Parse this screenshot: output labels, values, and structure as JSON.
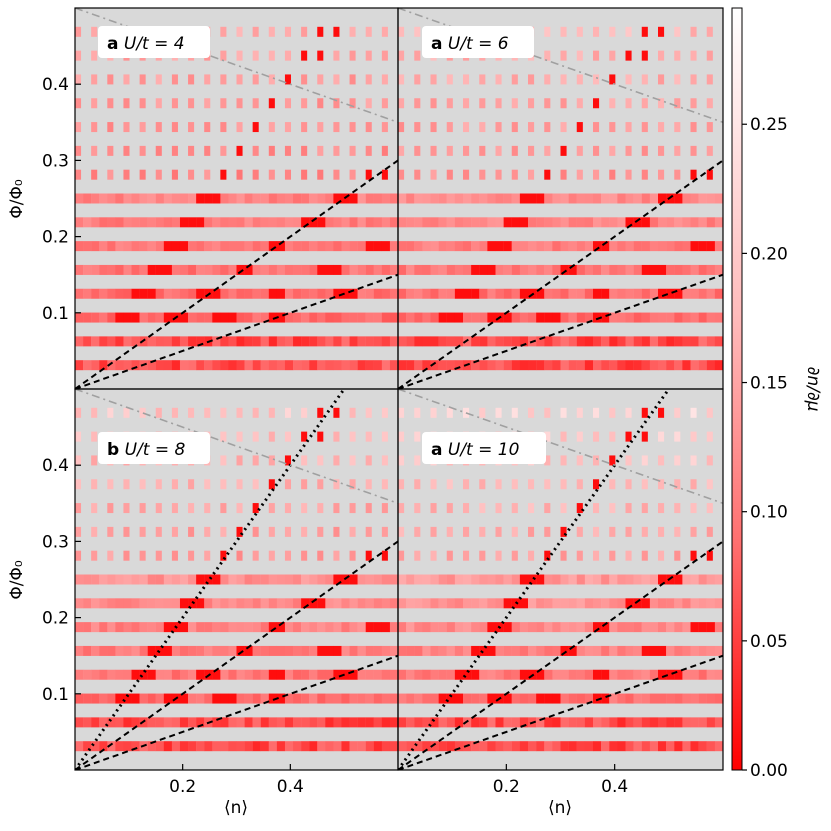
{
  "colors": {
    "background": "#d9d9d9",
    "low": "#ff0000",
    "high": "#ffffff",
    "dashed": "#000000",
    "dashdot": "#a0a0a0",
    "label_box": "#ffffff"
  },
  "colorbar": {
    "label": "∂n/∂μ",
    "ticks": [
      "0.00",
      "0.05",
      "0.10",
      "0.15",
      "0.20",
      "0.25"
    ],
    "tick_values": [
      0.0,
      0.05,
      0.1,
      0.15,
      0.2,
      0.25
    ],
    "range": [
      0.0,
      0.295
    ]
  },
  "axes": {
    "xlabel": "⟨n⟩",
    "ylabel": "Φ/Φ₀",
    "xticks": [
      "0.2",
      "0.4"
    ],
    "xtick_values": [
      0.2,
      0.4
    ],
    "yticks": [
      "0.1",
      "0.2",
      "0.3",
      "0.4"
    ],
    "ytick_values": [
      0.1,
      0.2,
      0.3,
      0.4
    ],
    "xlim": [
      0.0,
      0.6
    ],
    "ylim": [
      0.0,
      0.5
    ]
  },
  "panels": [
    {
      "id": "tl",
      "letter": "a",
      "text": "U/t = 4",
      "dotted": false,
      "dashdot_y": [
        0.5,
        0.35
      ]
    },
    {
      "id": "tr",
      "letter": "a",
      "text": "U/t = 6",
      "dotted": false,
      "dashdot_y": [
        0.5,
        0.35
      ]
    },
    {
      "id": "bl",
      "letter": "b",
      "text": "U/t = 8",
      "dotted": true,
      "dashdot_y": [
        0.5,
        0.35
      ]
    },
    {
      "id": "br",
      "letter": "a",
      "text": "U/t = 10",
      "dotted": true,
      "dashdot_y": [
        0.5,
        0.35
      ]
    }
  ],
  "chart_data": {
    "type": "heatmap",
    "xlabel": "⟨n⟩",
    "ylabel": "Φ/Φ₀",
    "colorbar_label": "∂n/∂μ",
    "xlim": [
      0.0,
      0.6
    ],
    "ylim": [
      0.0,
      0.5
    ],
    "panels": [
      "a U/t = 4",
      "a U/t = 6",
      "b U/t = 8",
      "a U/t = 10"
    ],
    "flux_values": [
      0.03125,
      0.0625,
      0.09375,
      0.125,
      0.15625,
      0.1875,
      0.21875,
      0.25,
      0.28125,
      0.3125,
      0.34375,
      0.375,
      0.40625,
      0.4375,
      0.46875
    ],
    "reference_lines": [
      {
        "style": "dashed",
        "slope": 0.5
      },
      {
        "style": "dashed",
        "slope": 0.25
      },
      {
        "style": "dotted",
        "slope": 1.0,
        "panels": [
          "b U/t = 8",
          "a U/t = 10"
        ]
      },
      {
        "style": "dashdot",
        "from": [
          0.0,
          0.5
        ],
        "to": [
          0.6,
          0.35
        ]
      }
    ]
  }
}
